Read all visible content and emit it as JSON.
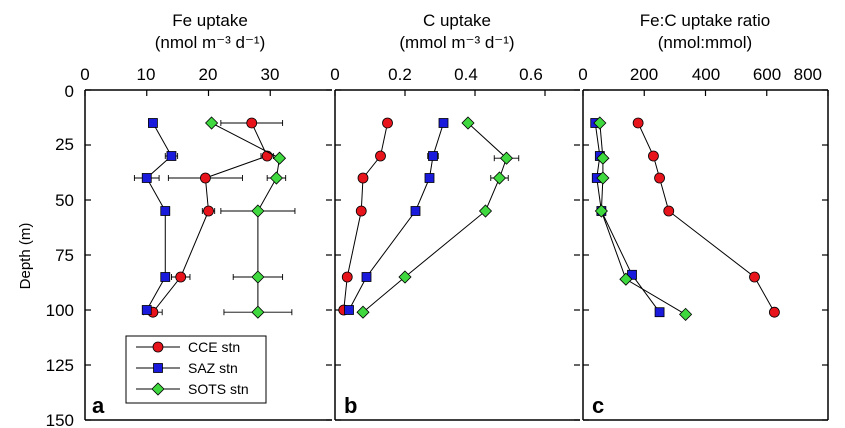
{
  "figure": {
    "ylabel": "Depth (m)",
    "yticks": [
      "0",
      "25",
      "50",
      "75",
      "100",
      "125",
      "150"
    ]
  },
  "legend": {
    "entries": [
      "CCE stn",
      "SAZ stn",
      "SOTS stn"
    ]
  },
  "colors": {
    "CCE": "#e8141c",
    "SAZ": "#1a1adc",
    "SOTS": "#3fd83f",
    "axes": "#000000"
  },
  "markers": {
    "CCE": "circle",
    "SAZ": "square",
    "SOTS": "diamond"
  },
  "chart_data": [
    {
      "type": "scatter",
      "panel": "a",
      "title_line1": "Fe uptake",
      "title_line2": "(nmol m⁻³ d⁻¹)",
      "xlim": [
        0,
        40
      ],
      "xticks": [
        "0",
        "10",
        "20",
        "30"
      ],
      "ylim": [
        0,
        150
      ],
      "y_inverted": true,
      "series": [
        {
          "name": "CCE stn",
          "key": "CCE",
          "x": [
            27,
            29.5,
            19.5,
            20,
            15.5,
            11
          ],
          "y": [
            15,
            30,
            40,
            55,
            85,
            101
          ],
          "xerr": [
            5,
            1,
            6,
            1,
            1.5,
            1.5
          ]
        },
        {
          "name": "SAZ stn",
          "key": "SAZ",
          "x": [
            11,
            14,
            10,
            13,
            13,
            10
          ],
          "y": [
            15,
            30,
            40,
            55,
            85,
            100
          ],
          "xerr": [
            0,
            1,
            2,
            0,
            0,
            0
          ]
        },
        {
          "name": "SOTS stn",
          "key": "SOTS",
          "x": [
            20.5,
            31.5,
            31,
            28,
            28,
            28
          ],
          "y": [
            15,
            31,
            40,
            55,
            85,
            101
          ],
          "xerr": [
            0,
            0,
            1.5,
            6,
            4,
            5.5
          ]
        }
      ]
    },
    {
      "type": "scatter",
      "panel": "b",
      "title_line1": "C uptake",
      "title_line2": "(mmol m⁻³ d⁻¹)",
      "xlim": [
        0,
        0.7
      ],
      "xticks": [
        "0",
        "0.2",
        "0.4",
        "0.6"
      ],
      "ylim": [
        0,
        150
      ],
      "y_inverted": true,
      "series": [
        {
          "name": "CCE stn",
          "key": "CCE",
          "x": [
            0.15,
            0.13,
            0.08,
            0.075,
            0.035,
            0.025
          ],
          "y": [
            15,
            30,
            40,
            55,
            85,
            100
          ],
          "xerr": [
            0.01,
            0,
            0,
            0,
            0,
            0
          ]
        },
        {
          "name": "SAZ stn",
          "key": "SAZ",
          "x": [
            0.31,
            0.28,
            0.27,
            0.23,
            0.09,
            0.04
          ],
          "y": [
            15,
            30,
            40,
            55,
            85,
            100
          ],
          "xerr": [
            0.01,
            0.015,
            0,
            0,
            0,
            0
          ]
        },
        {
          "name": "SOTS stn",
          "key": "SOTS",
          "x": [
            0.38,
            0.49,
            0.47,
            0.43,
            0.2,
            0.08
          ],
          "y": [
            15,
            31,
            40,
            55,
            85,
            101
          ],
          "xerr": [
            0,
            0.035,
            0.025,
            0,
            0,
            0
          ]
        }
      ]
    },
    {
      "type": "scatter",
      "panel": "c",
      "title_line1": "Fe:C uptake ratio",
      "title_line2": "(nmol:mmol)",
      "xlim": [
        0,
        800
      ],
      "xticks": [
        "0",
        "200",
        "400",
        "600",
        "800"
      ],
      "ylim": [
        0,
        150
      ],
      "y_inverted": true,
      "series": [
        {
          "name": "CCE stn",
          "key": "CCE",
          "x": [
            180,
            230,
            250,
            280,
            560,
            625
          ],
          "y": [
            15,
            30,
            40,
            55,
            85,
            101
          ],
          "xerr": [
            0,
            0,
            0,
            0,
            0,
            0
          ]
        },
        {
          "name": "SAZ stn",
          "key": "SAZ",
          "x": [
            40,
            55,
            45,
            60,
            160,
            250
          ],
          "y": [
            15,
            30,
            40,
            55,
            84,
            101
          ],
          "xerr": [
            0,
            0,
            0,
            0,
            0,
            0
          ]
        },
        {
          "name": "SOTS stn",
          "key": "SOTS",
          "x": [
            55,
            65,
            65,
            60,
            140,
            335
          ],
          "y": [
            15,
            31,
            40,
            55,
            86,
            102
          ],
          "xerr": [
            0,
            0,
            0,
            0,
            0,
            0
          ]
        }
      ]
    }
  ]
}
